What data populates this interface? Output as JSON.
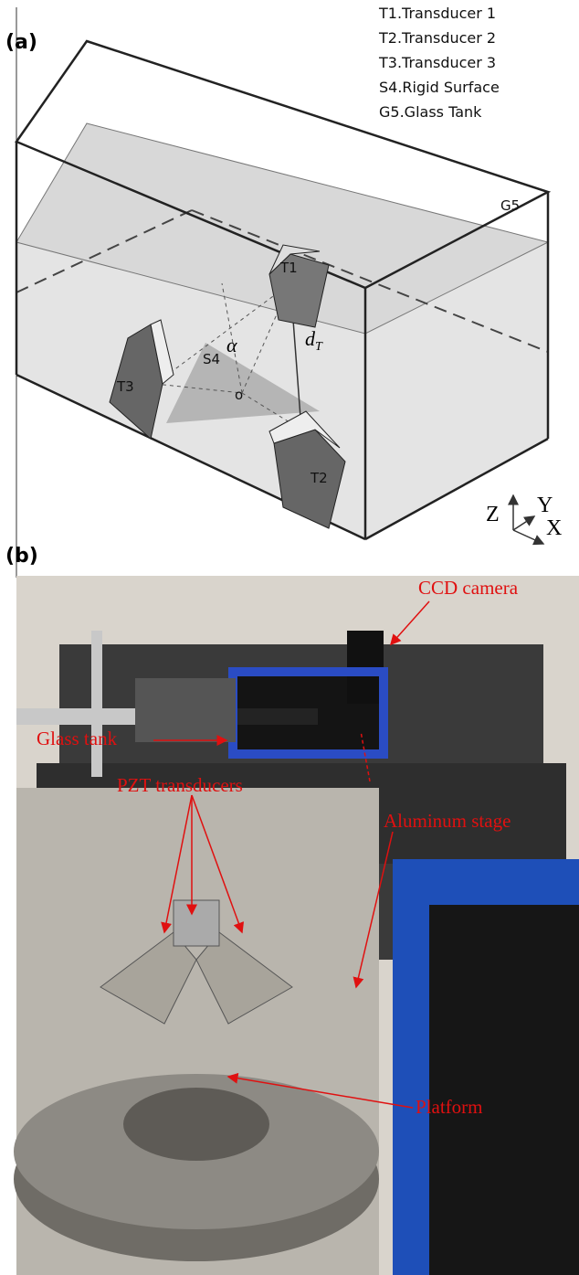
{
  "panel_a": {
    "label": "(a)",
    "legend": [
      "T1.Transducer 1",
      "T2.Transducer 2",
      "T3.Transducer 3",
      "S4.Rigid Surface",
      "G5.Glass Tank"
    ],
    "labels": {
      "t1": "T1",
      "t2": "T2",
      "t3": "T3",
      "s4": "S4",
      "g5": "G5",
      "alpha": "α",
      "d": "d",
      "d_sub": "T",
      "origin": "o"
    },
    "axes": {
      "z": "Z",
      "y": "Y",
      "x": "X"
    }
  },
  "panel_b": {
    "label": "(b)",
    "annotations": [
      "CCD camera",
      "Glass tank",
      "PZT transducers",
      "Aluminum stage",
      "Platform"
    ]
  }
}
